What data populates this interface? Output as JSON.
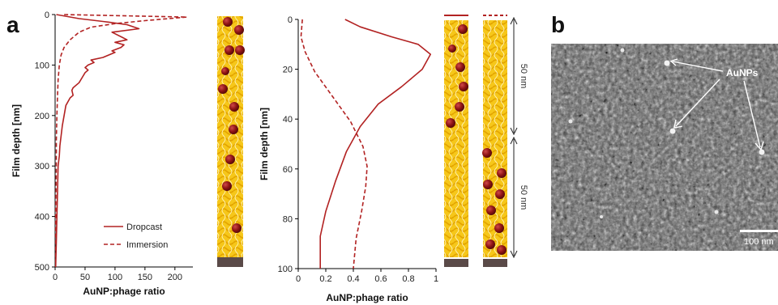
{
  "panels": {
    "a_label": "a",
    "b_label": "b"
  },
  "colors": {
    "series": "#b22222",
    "fiber": "#f5c518",
    "fiber_edge": "#e0a800",
    "particle": "#9b1b1b",
    "substrate": "#5a4a48"
  },
  "chart_data": [
    {
      "type": "line",
      "orientation": "depth-vertical",
      "xlabel": "AuNP:phage ratio",
      "ylabel": "Film depth [nm]",
      "xlim": [
        0,
        230
      ],
      "ylim": [
        0,
        500
      ],
      "y_inverted": true,
      "xticks": [
        0,
        50,
        100,
        150,
        200
      ],
      "yticks": [
        0,
        100,
        200,
        300,
        400,
        500
      ],
      "grid": false,
      "legend_position": "bottom-right",
      "series": [
        {
          "name": "Dropcast",
          "style": "solid",
          "points": [
            [
              2,
              0
            ],
            [
              40,
              8
            ],
            [
              90,
              15
            ],
            [
              120,
              20
            ],
            [
              140,
              28
            ],
            [
              95,
              35
            ],
            [
              112,
              45
            ],
            [
              120,
              50
            ],
            [
              100,
              55
            ],
            [
              115,
              60
            ],
            [
              110,
              65
            ],
            [
              95,
              72
            ],
            [
              100,
              75
            ],
            [
              80,
              85
            ],
            [
              60,
              90
            ],
            [
              65,
              95
            ],
            [
              55,
              100
            ],
            [
              50,
              105
            ],
            [
              55,
              110
            ],
            [
              50,
              115
            ],
            [
              45,
              125
            ],
            [
              40,
              135
            ],
            [
              30,
              145
            ],
            [
              28,
              150
            ],
            [
              30,
              160
            ],
            [
              25,
              165
            ],
            [
              18,
              180
            ],
            [
              15,
              200
            ],
            [
              12,
              220
            ],
            [
              10,
              240
            ],
            [
              8,
              260
            ],
            [
              7,
              280
            ],
            [
              5,
              300
            ],
            [
              4,
              350
            ],
            [
              3,
              400
            ],
            [
              2,
              450
            ],
            [
              1,
              500
            ]
          ]
        },
        {
          "name": "Immersion",
          "style": "dashed",
          "points": [
            [
              15,
              0
            ],
            [
              220,
              5
            ],
            [
              150,
              12
            ],
            [
              100,
              18
            ],
            [
              60,
              25
            ],
            [
              40,
              35
            ],
            [
              25,
              50
            ],
            [
              15,
              65
            ],
            [
              10,
              80
            ],
            [
              7,
              100
            ],
            [
              5,
              130
            ],
            [
              4,
              160
            ],
            [
              3,
              200
            ],
            [
              2,
              250
            ],
            [
              2,
              300
            ],
            [
              1,
              400
            ],
            [
              1,
              500
            ]
          ]
        }
      ]
    },
    {
      "type": "line",
      "orientation": "depth-vertical",
      "xlabel": "AuNP:phage ratio",
      "ylabel": "Film depth [nm]",
      "xlim": [
        0,
        1
      ],
      "ylim": [
        0,
        100
      ],
      "y_inverted": true,
      "xticks": [
        0,
        0.2,
        0.4,
        0.6,
        0.8,
        1
      ],
      "xtick_labels": [
        "0",
        "0.2",
        "0.4",
        "0.6",
        "0.8",
        "1"
      ],
      "yticks": [
        0,
        20,
        40,
        60,
        80,
        100
      ],
      "grid": false,
      "series": [
        {
          "name": "",
          "style": "solid",
          "points": [
            [
              0.34,
              0
            ],
            [
              0.45,
              3
            ],
            [
              0.68,
              7
            ],
            [
              0.87,
              10
            ],
            [
              0.96,
              14
            ],
            [
              0.9,
              20
            ],
            [
              0.75,
              27
            ],
            [
              0.58,
              34
            ],
            [
              0.45,
              43
            ],
            [
              0.35,
              53
            ],
            [
              0.27,
              65
            ],
            [
              0.2,
              77
            ],
            [
              0.16,
              87
            ],
            [
              0.16,
              100
            ]
          ]
        },
        {
          "name": "",
          "style": "dashed",
          "points": [
            [
              0.03,
              0
            ],
            [
              0.02,
              7
            ],
            [
              0.05,
              13
            ],
            [
              0.12,
              21
            ],
            [
              0.25,
              31
            ],
            [
              0.38,
              41
            ],
            [
              0.47,
              51
            ],
            [
              0.5,
              59
            ],
            [
              0.49,
              67
            ],
            [
              0.46,
              77
            ],
            [
              0.42,
              88
            ],
            [
              0.4,
              100
            ]
          ]
        }
      ]
    }
  ],
  "annotations": {
    "bracket_label_top": "50 nm",
    "bracket_label_bottom": "50 nm"
  },
  "sem": {
    "label": "AuNPs",
    "scale_bar": "100 nm"
  }
}
